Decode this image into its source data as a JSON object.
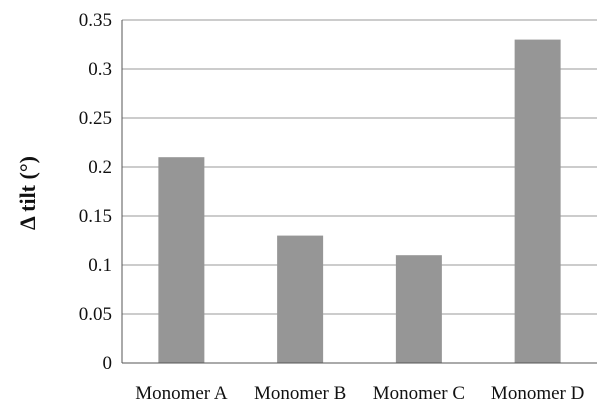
{
  "chart_data": {
    "type": "bar",
    "categories": [
      "Monomer A",
      "Monomer B",
      "Monomer C",
      "Monomer D"
    ],
    "values": [
      0.21,
      0.13,
      0.11,
      0.33
    ],
    "title": "",
    "xlabel": "",
    "ylabel": "Δ tilt (°)",
    "ylim": [
      0,
      0.35
    ],
    "yticks": [
      "0",
      "0.05",
      "0.1",
      "0.15",
      "0.2",
      "0.25",
      "0.3",
      "0.35"
    ],
    "grid": true,
    "legend": "none",
    "bar_color": "#969696"
  }
}
